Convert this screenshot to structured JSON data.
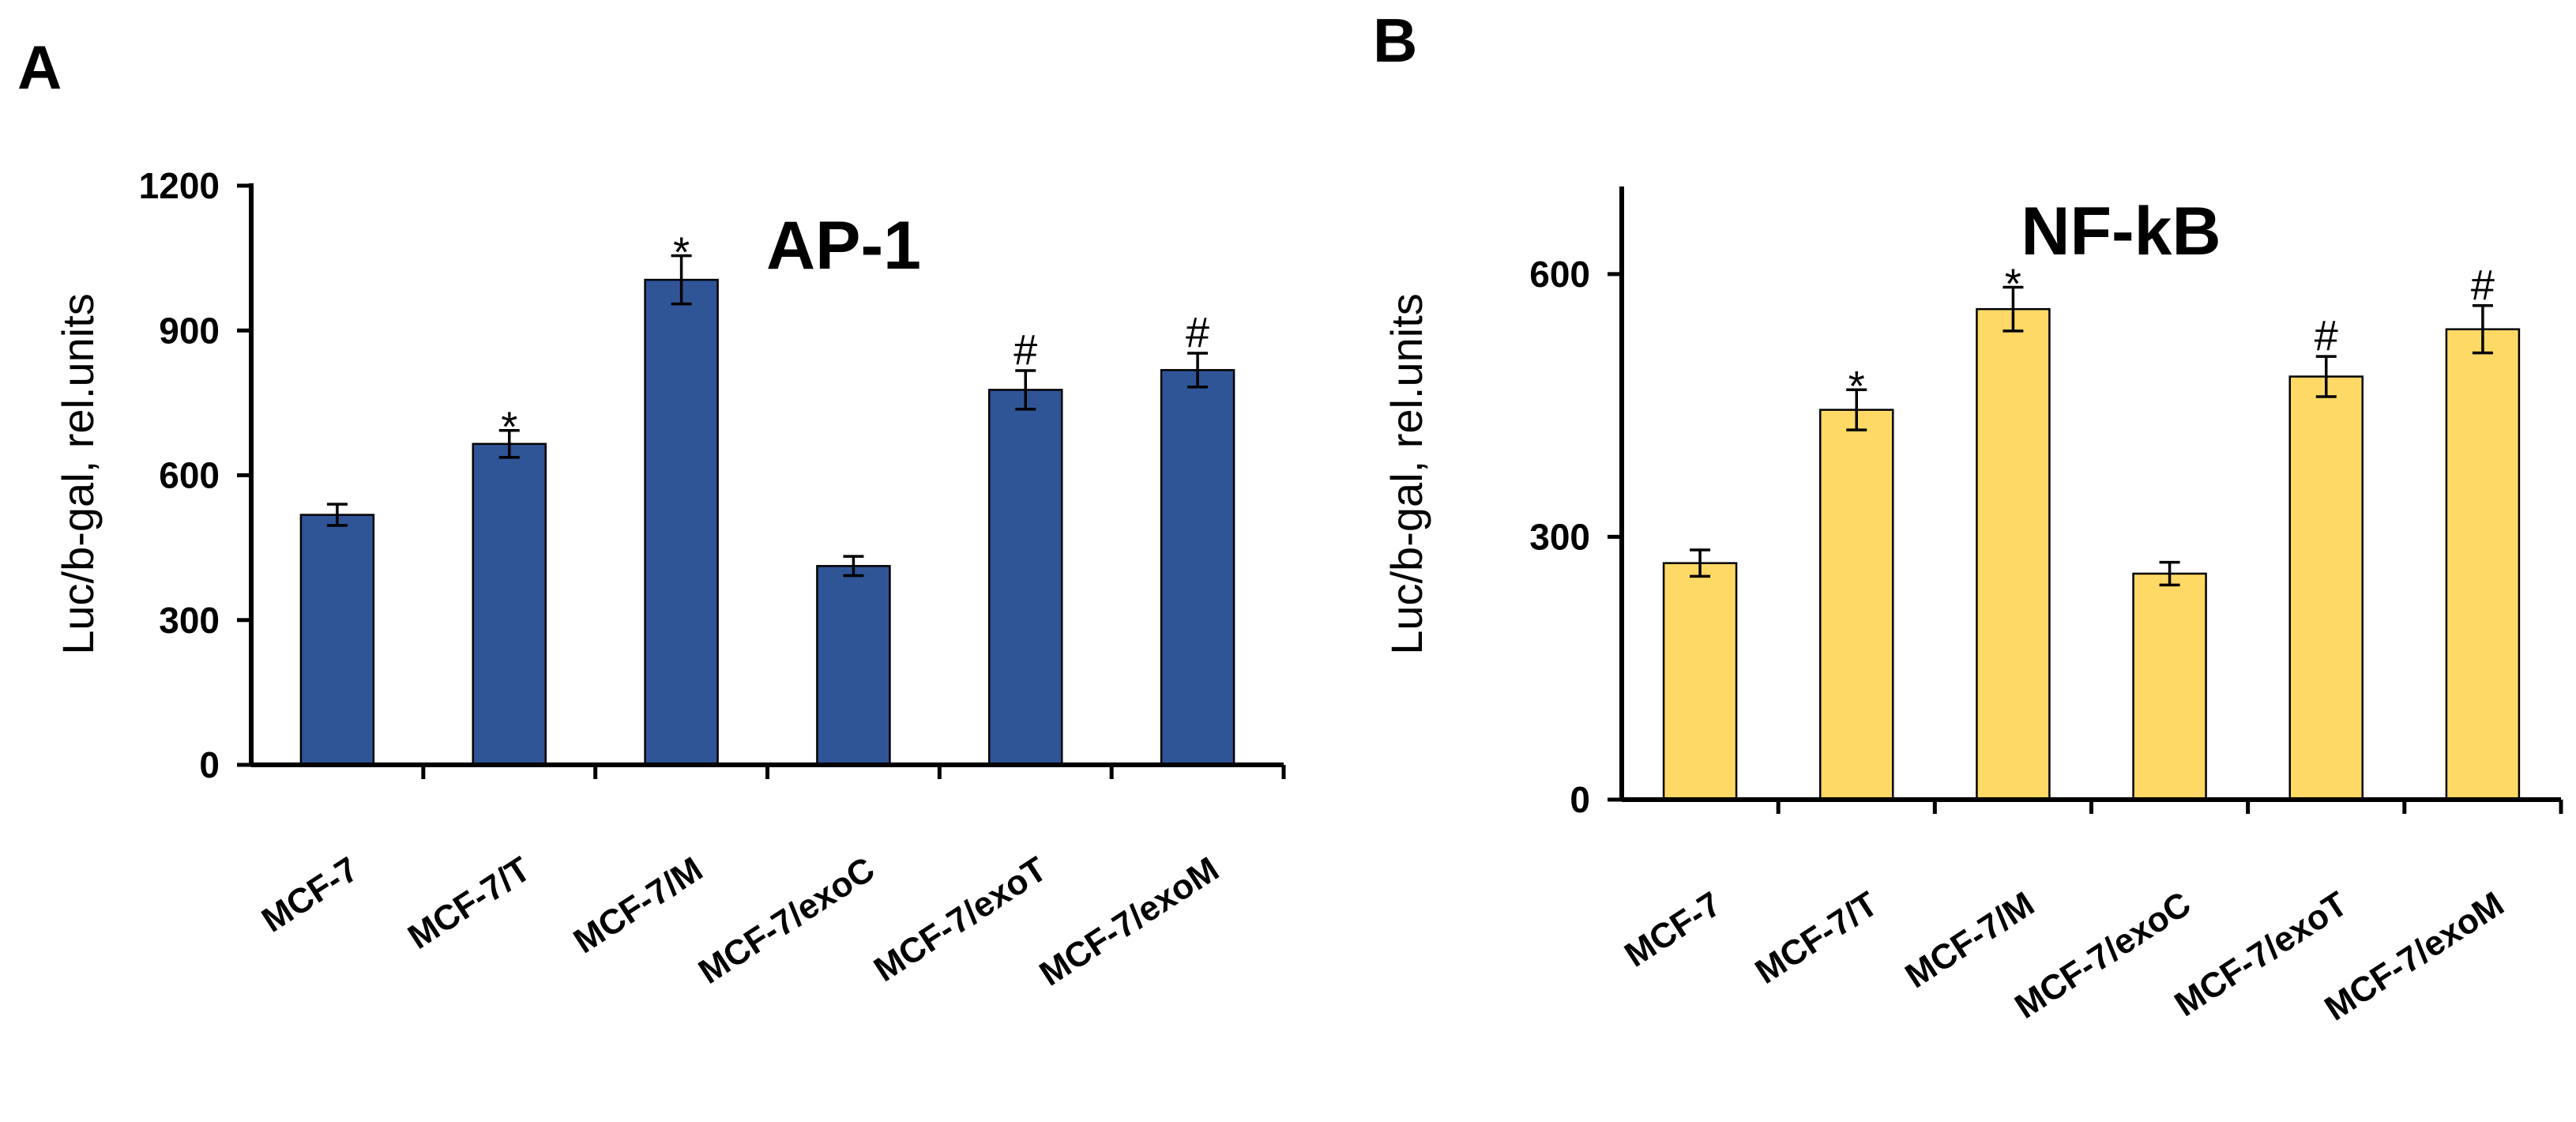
{
  "figure": {
    "background": "#ffffff"
  },
  "chart_data": [
    {
      "panel_letter": "A",
      "type": "bar",
      "title": "AP-1",
      "ylabel": "Luc/b-gal, rel.units",
      "xlabel": "",
      "ylim": [
        0,
        1200
      ],
      "yticks": [
        0,
        300,
        600,
        900,
        1200
      ],
      "grid": false,
      "legend": "none",
      "bar_color": "#2f5597",
      "categories": [
        "MCF-7",
        "MCF-7/T",
        "MCF-7/M",
        "MCF-7/exoC",
        "MCF-7/exoT",
        "MCF-7/exoM"
      ],
      "values": [
        518,
        665,
        1005,
        412,
        777,
        818
      ],
      "errors": [
        22,
        28,
        50,
        20,
        40,
        35
      ],
      "significance": [
        "",
        "*",
        "*",
        "",
        "#",
        "#"
      ]
    },
    {
      "panel_letter": "B",
      "type": "bar",
      "title": "NF-kB",
      "ylabel": "Luc/b-gal,  rel.units",
      "xlabel": "",
      "ylim": [
        0,
        700
      ],
      "yticks": [
        0,
        300,
        600
      ],
      "grid": false,
      "legend": "none",
      "bar_color": "#ffd966",
      "categories": [
        "MCF-7",
        "MCF-7/T",
        "MCF-7/M",
        "MCF-7/exoC",
        "MCF-7/exoT",
        "MCF-7/exoM"
      ],
      "values": [
        270,
        445,
        560,
        258,
        483,
        537
      ],
      "errors": [
        15,
        23,
        25,
        13,
        23,
        27
      ],
      "significance": [
        "",
        "*",
        "*",
        "",
        "#",
        "#"
      ]
    }
  ]
}
